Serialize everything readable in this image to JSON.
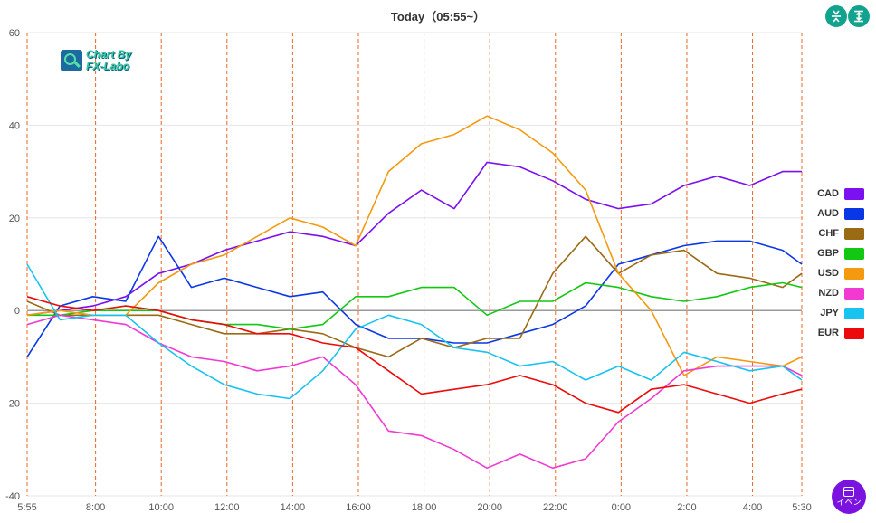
{
  "header": {
    "title": "Today（05:55~）"
  },
  "toolbar": {
    "compress_icon": "vertical-compress-icon",
    "fit_icon": "fit-height-icon"
  },
  "logo": {
    "line1": "Chart By",
    "line2": "FX-Labo"
  },
  "event_button": {
    "label": "イベン",
    "icon": "calendar-icon",
    "color": "#7a12e0"
  },
  "chart_data": {
    "type": "line",
    "title": "Today（05:55~）",
    "ylim": [
      -40,
      60
    ],
    "yticks": [
      -40,
      -20,
      0,
      20,
      40,
      60
    ],
    "grid": true,
    "legend_position": "right",
    "x_tick_labels": [
      "5:55",
      "8:00",
      "10:00",
      "12:00",
      "14:00",
      "16:00",
      "18:00",
      "20:00",
      "22:00",
      "0:00",
      "2:00",
      "4:00",
      "5:30"
    ],
    "x_tick_hours": [
      0,
      2.083,
      4.083,
      6.083,
      8.083,
      10.083,
      12.083,
      14.083,
      16.083,
      18.083,
      20.083,
      22.083,
      23.583
    ],
    "x_range_hours": [
      0,
      23.583
    ],
    "series": [
      {
        "name": "CAD",
        "color": "#7b10f0",
        "points": [
          [
            0,
            -1
          ],
          [
            1,
            0
          ],
          [
            2,
            1
          ],
          [
            3,
            3
          ],
          [
            4,
            8
          ],
          [
            5,
            10
          ],
          [
            6,
            13
          ],
          [
            7,
            15
          ],
          [
            8,
            17
          ],
          [
            9,
            16
          ],
          [
            10,
            14
          ],
          [
            11,
            21
          ],
          [
            12,
            26
          ],
          [
            13,
            22
          ],
          [
            14,
            32
          ],
          [
            15,
            31
          ],
          [
            16,
            28
          ],
          [
            17,
            24
          ],
          [
            18,
            22
          ],
          [
            19,
            23
          ],
          [
            20,
            27
          ],
          [
            21,
            29
          ],
          [
            22,
            27
          ],
          [
            23,
            30
          ],
          [
            23.583,
            30
          ]
        ]
      },
      {
        "name": "AUD",
        "color": "#0a37e6",
        "points": [
          [
            0,
            -10
          ],
          [
            1,
            1
          ],
          [
            2,
            3
          ],
          [
            3,
            2
          ],
          [
            4,
            16
          ],
          [
            5,
            5
          ],
          [
            6,
            7
          ],
          [
            7,
            5
          ],
          [
            8,
            3
          ],
          [
            9,
            4
          ],
          [
            10,
            -3
          ],
          [
            11,
            -6
          ],
          [
            12,
            -6
          ],
          [
            13,
            -7
          ],
          [
            14,
            -7
          ],
          [
            15,
            -5
          ],
          [
            16,
            -3
          ],
          [
            17,
            1
          ],
          [
            18,
            10
          ],
          [
            19,
            12
          ],
          [
            20,
            14
          ],
          [
            21,
            15
          ],
          [
            22,
            15
          ],
          [
            23,
            13
          ],
          [
            23.583,
            10
          ]
        ]
      },
      {
        "name": "CHF",
        "color": "#9a6a14",
        "points": [
          [
            0,
            2
          ],
          [
            1,
            -1
          ],
          [
            2,
            -1
          ],
          [
            3,
            -1
          ],
          [
            4,
            -1
          ],
          [
            5,
            -3
          ],
          [
            6,
            -5
          ],
          [
            7,
            -5
          ],
          [
            8,
            -4
          ],
          [
            9,
            -5
          ],
          [
            10,
            -8
          ],
          [
            11,
            -10
          ],
          [
            12,
            -6
          ],
          [
            13,
            -8
          ],
          [
            14,
            -6
          ],
          [
            15,
            -6
          ],
          [
            16,
            8
          ],
          [
            17,
            16
          ],
          [
            18,
            8
          ],
          [
            19,
            12
          ],
          [
            20,
            13
          ],
          [
            21,
            8
          ],
          [
            22,
            7
          ],
          [
            23,
            5
          ],
          [
            23.583,
            8
          ]
        ]
      },
      {
        "name": "GBP",
        "color": "#12c812",
        "points": [
          [
            0,
            -1
          ],
          [
            1,
            -1
          ],
          [
            2,
            0
          ],
          [
            3,
            0
          ],
          [
            4,
            0
          ],
          [
            5,
            -2
          ],
          [
            6,
            -3
          ],
          [
            7,
            -3
          ],
          [
            8,
            -4
          ],
          [
            9,
            -3
          ],
          [
            10,
            3
          ],
          [
            11,
            3
          ],
          [
            12,
            5
          ],
          [
            13,
            5
          ],
          [
            14,
            -1
          ],
          [
            15,
            2
          ],
          [
            16,
            2
          ],
          [
            17,
            6
          ],
          [
            18,
            5
          ],
          [
            19,
            3
          ],
          [
            20,
            2
          ],
          [
            21,
            3
          ],
          [
            22,
            5
          ],
          [
            23,
            6
          ],
          [
            23.583,
            5
          ]
        ]
      },
      {
        "name": "USD",
        "color": "#f39a10",
        "points": [
          [
            0,
            -1
          ],
          [
            1,
            0
          ],
          [
            2,
            -1
          ],
          [
            3,
            -1
          ],
          [
            4,
            6
          ],
          [
            5,
            10
          ],
          [
            6,
            12
          ],
          [
            7,
            16
          ],
          [
            8,
            20
          ],
          [
            9,
            18
          ],
          [
            10,
            14
          ],
          [
            11,
            30
          ],
          [
            12,
            36
          ],
          [
            13,
            38
          ],
          [
            14,
            42
          ],
          [
            15,
            39
          ],
          [
            16,
            34
          ],
          [
            17,
            26
          ],
          [
            18,
            8
          ],
          [
            19,
            0
          ],
          [
            20,
            -14
          ],
          [
            21,
            -10
          ],
          [
            22,
            -11
          ],
          [
            23,
            -12
          ],
          [
            23.583,
            -10
          ]
        ]
      },
      {
        "name": "NZD",
        "color": "#f03ad2",
        "points": [
          [
            0,
            -3
          ],
          [
            1,
            -1
          ],
          [
            2,
            -2
          ],
          [
            3,
            -3
          ],
          [
            4,
            -7
          ],
          [
            5,
            -10
          ],
          [
            6,
            -11
          ],
          [
            7,
            -13
          ],
          [
            8,
            -12
          ],
          [
            9,
            -10
          ],
          [
            10,
            -16
          ],
          [
            11,
            -26
          ],
          [
            12,
            -27
          ],
          [
            13,
            -30
          ],
          [
            14,
            -34
          ],
          [
            15,
            -31
          ],
          [
            16,
            -34
          ],
          [
            17,
            -32
          ],
          [
            18,
            -24
          ],
          [
            19,
            -19
          ],
          [
            20,
            -13
          ],
          [
            21,
            -12
          ],
          [
            22,
            -12
          ],
          [
            23,
            -12
          ],
          [
            23.583,
            -14
          ]
        ]
      },
      {
        "name": "JPY",
        "color": "#18c3f0",
        "points": [
          [
            0,
            10
          ],
          [
            1,
            -2
          ],
          [
            2,
            -1
          ],
          [
            3,
            -1
          ],
          [
            4,
            -7
          ],
          [
            5,
            -12
          ],
          [
            6,
            -16
          ],
          [
            7,
            -18
          ],
          [
            8,
            -19
          ],
          [
            9,
            -13
          ],
          [
            10,
            -4
          ],
          [
            11,
            -1
          ],
          [
            12,
            -3
          ],
          [
            13,
            -8
          ],
          [
            14,
            -9
          ],
          [
            15,
            -12
          ],
          [
            16,
            -11
          ],
          [
            17,
            -15
          ],
          [
            18,
            -12
          ],
          [
            19,
            -15
          ],
          [
            20,
            -9
          ],
          [
            21,
            -11
          ],
          [
            22,
            -13
          ],
          [
            23,
            -12
          ],
          [
            23.583,
            -15
          ]
        ]
      },
      {
        "name": "EUR",
        "color": "#ec0a0a",
        "points": [
          [
            0,
            3
          ],
          [
            1,
            1
          ],
          [
            2,
            0
          ],
          [
            3,
            1
          ],
          [
            4,
            0
          ],
          [
            5,
            -2
          ],
          [
            6,
            -3
          ],
          [
            7,
            -5
          ],
          [
            8,
            -5
          ],
          [
            9,
            -7
          ],
          [
            10,
            -8
          ],
          [
            11,
            -13
          ],
          [
            12,
            -18
          ],
          [
            13,
            -17
          ],
          [
            14,
            -16
          ],
          [
            15,
            -14
          ],
          [
            16,
            -16
          ],
          [
            17,
            -20
          ],
          [
            18,
            -22
          ],
          [
            19,
            -17
          ],
          [
            20,
            -16
          ],
          [
            21,
            -18
          ],
          [
            22,
            -20
          ],
          [
            23,
            -18
          ],
          [
            23.583,
            -17
          ]
        ]
      }
    ]
  }
}
